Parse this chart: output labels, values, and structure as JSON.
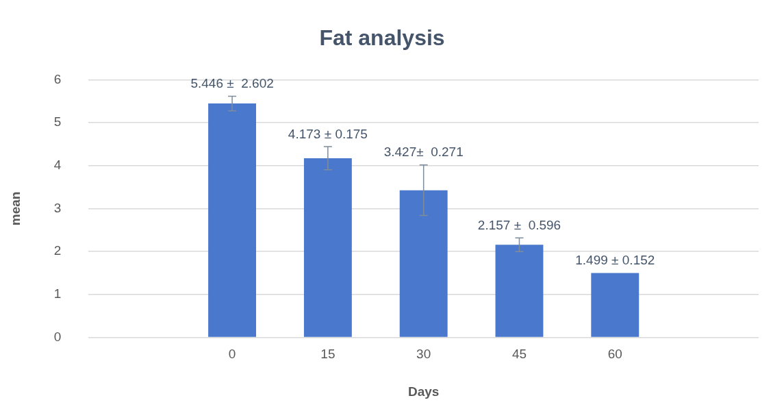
{
  "chart_data": {
    "type": "bar",
    "title": "Fat analysis",
    "xlabel": "Days",
    "ylabel": "mean",
    "categories": [
      null,
      "0",
      "15",
      "30",
      "45",
      "60",
      null
    ],
    "values": [
      null,
      5.446,
      4.173,
      3.427,
      2.157,
      1.499,
      null
    ],
    "errors": [
      null,
      0.17,
      0.27,
      0.59,
      0.16,
      null,
      null
    ],
    "value_labels": [
      null,
      "5.446 ±  2.602",
      "4.173 ± 0.175",
      "3.427±  0.271",
      "2.157 ±  0.596",
      "1.499 ± 0.152",
      null
    ],
    "color": "#4a78cc",
    "ylim": [
      0,
      6
    ],
    "yticks": [
      0,
      1,
      2,
      3,
      4,
      5,
      6
    ],
    "grid": "y",
    "legend": false
  }
}
